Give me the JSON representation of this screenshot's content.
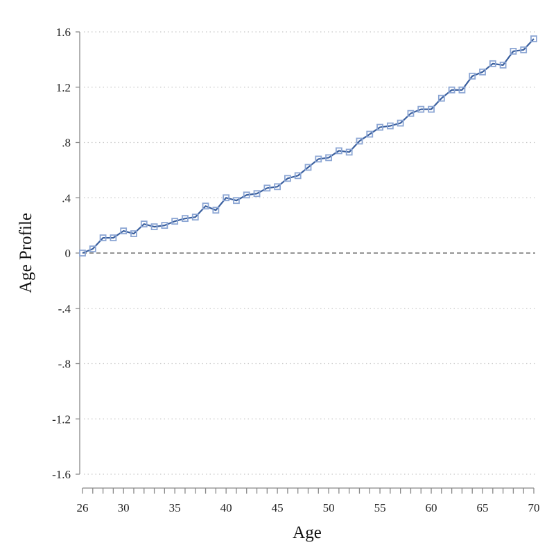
{
  "chart_data": {
    "type": "line",
    "xlabel": "Age",
    "ylabel": "Age Profile",
    "xlim": [
      26,
      70
    ],
    "ylim": [
      -1.6,
      1.6
    ],
    "x_tick_labels": [
      "26",
      "30",
      "35",
      "40",
      "45",
      "50",
      "55",
      "60",
      "65",
      "70"
    ],
    "y_tick_labels": [
      "1.6",
      "1.2",
      ".8",
      ".4",
      "0",
      "-.4",
      "-.8",
      "-1.2",
      "-1.6"
    ],
    "grid": "horizontal dotted",
    "reference_line": 0,
    "series": [
      {
        "color": "#3a5f9e",
        "marker_color": "#8ca6d4",
        "x": [
          26,
          27,
          28,
          29,
          30,
          31,
          32,
          33,
          34,
          35,
          36,
          37,
          38,
          39,
          40,
          41,
          42,
          43,
          44,
          45,
          46,
          47,
          48,
          49,
          50,
          51,
          52,
          53,
          54,
          55,
          56,
          57,
          58,
          59,
          60,
          61,
          62,
          63,
          64,
          65,
          66,
          67,
          68,
          69,
          70
        ],
        "values": [
          0.0,
          0.03,
          0.11,
          0.11,
          0.16,
          0.14,
          0.21,
          0.19,
          0.2,
          0.23,
          0.25,
          0.26,
          0.34,
          0.31,
          0.4,
          0.38,
          0.42,
          0.43,
          0.47,
          0.48,
          0.54,
          0.56,
          0.62,
          0.68,
          0.69,
          0.74,
          0.73,
          0.81,
          0.86,
          0.91,
          0.92,
          0.94,
          1.01,
          1.04,
          1.04,
          1.12,
          1.18,
          1.18,
          1.28,
          1.31,
          1.37,
          1.36,
          1.46,
          1.47,
          1.55
        ]
      }
    ]
  }
}
